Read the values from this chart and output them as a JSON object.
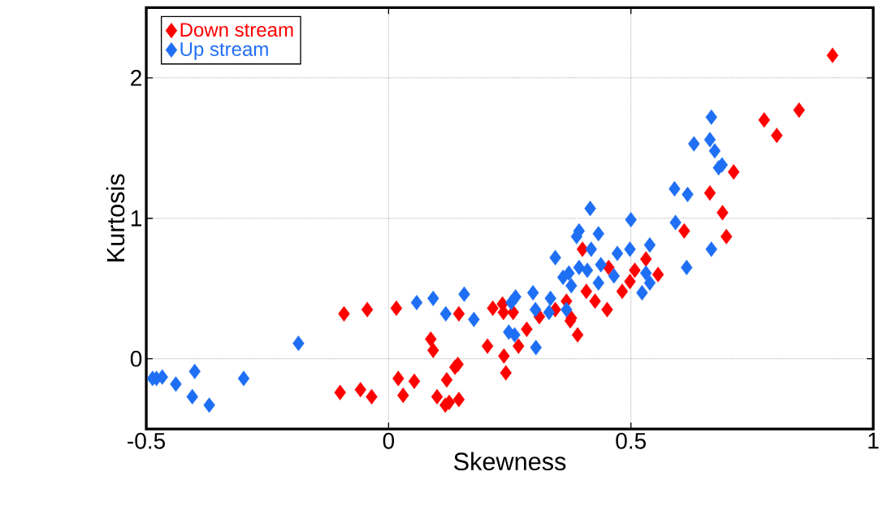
{
  "chart_data": {
    "type": "scatter",
    "xlabel": "Skewness",
    "ylabel": "Kurtosis",
    "xlim": [
      -0.5,
      1
    ],
    "ylim": [
      -0.5,
      2.5
    ],
    "xticks": [
      -0.5,
      0,
      0.5,
      1
    ],
    "yticks": [
      0,
      1,
      2
    ],
    "grid": true,
    "legend": "top left",
    "marker": "diamond",
    "series": [
      {
        "name": "Down stream",
        "color": "#ff0000",
        "x": [
          -0.1,
          -0.092,
          -0.058,
          -0.044,
          -0.035,
          0.016,
          0.02,
          0.053,
          0.03,
          0.087,
          0.092,
          0.1,
          0.117,
          0.125,
          0.145,
          0.12,
          0.137,
          0.143,
          0.145,
          0.204,
          0.215,
          0.235,
          0.237,
          0.257,
          0.238,
          0.242,
          0.268,
          0.285,
          0.311,
          0.344,
          0.375,
          0.39,
          0.367,
          0.377,
          0.408,
          0.426,
          0.451,
          0.482,
          0.498,
          0.508,
          0.454,
          0.531,
          0.556,
          0.61,
          0.663,
          0.689,
          0.697,
          0.712,
          0.775,
          0.801,
          0.847,
          0.916,
          0.4
        ],
        "values": [
          -0.24,
          0.32,
          -0.22,
          0.35,
          -0.27,
          0.36,
          -0.14,
          -0.16,
          -0.26,
          0.14,
          0.06,
          -0.27,
          -0.33,
          -0.31,
          -0.29,
          -0.15,
          -0.06,
          -0.04,
          0.32,
          0.09,
          0.36,
          0.39,
          0.33,
          0.33,
          0.02,
          -0.1,
          0.09,
          0.21,
          0.3,
          0.35,
          0.27,
          0.17,
          0.41,
          0.29,
          0.48,
          0.41,
          0.35,
          0.48,
          0.55,
          0.63,
          0.65,
          0.71,
          0.6,
          0.91,
          1.18,
          1.04,
          0.87,
          1.33,
          1.7,
          1.59,
          1.77,
          2.16,
          0.78
        ]
      },
      {
        "name": "Up stream",
        "color": "#1f6ff5",
        "x": [
          -0.487,
          -0.479,
          -0.467,
          -0.439,
          -0.4,
          -0.405,
          -0.37,
          -0.299,
          -0.186,
          0.058,
          0.092,
          0.156,
          0.118,
          0.176,
          0.248,
          0.26,
          0.304,
          0.262,
          0.253,
          0.298,
          0.303,
          0.334,
          0.331,
          0.367,
          0.344,
          0.36,
          0.372,
          0.377,
          0.393,
          0.666,
          0.63,
          0.663,
          0.673,
          0.688,
          0.681,
          0.59,
          0.617,
          0.416,
          0.5,
          0.592,
          0.393,
          0.433,
          0.388,
          0.418,
          0.472,
          0.498,
          0.539,
          0.666,
          0.615,
          0.41,
          0.438,
          0.433,
          0.465,
          0.531,
          0.539,
          0.523
        ],
        "values": [
          -0.14,
          -0.14,
          -0.13,
          -0.18,
          -0.09,
          -0.27,
          -0.33,
          -0.14,
          0.11,
          0.4,
          0.43,
          0.46,
          0.32,
          0.28,
          0.19,
          0.17,
          0.08,
          0.44,
          0.4,
          0.47,
          0.35,
          0.43,
          0.33,
          0.35,
          0.72,
          0.58,
          0.61,
          0.52,
          0.65,
          1.72,
          1.53,
          1.56,
          1.48,
          1.38,
          1.36,
          1.21,
          1.17,
          1.07,
          0.99,
          0.97,
          0.91,
          0.89,
          0.87,
          0.78,
          0.75,
          0.78,
          0.81,
          0.78,
          0.65,
          0.63,
          0.67,
          0.54,
          0.59,
          0.61,
          0.54,
          0.47
        ]
      }
    ]
  }
}
